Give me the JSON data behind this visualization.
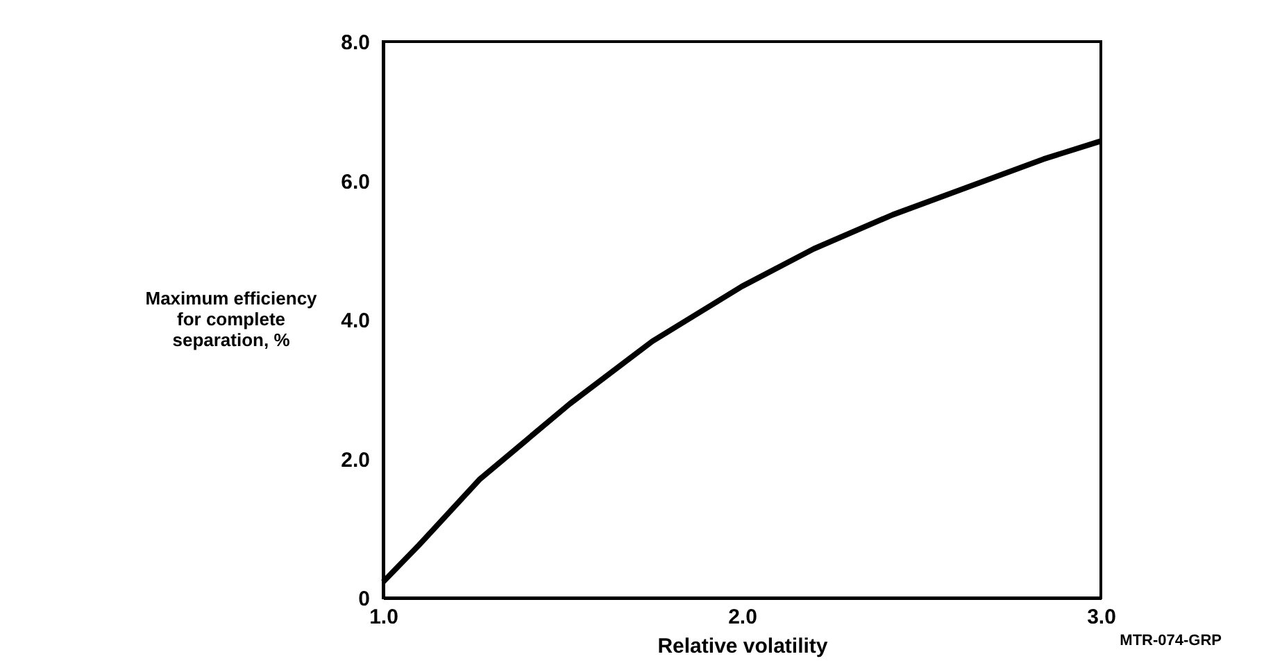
{
  "chart_data": {
    "type": "line",
    "xlabel": "Relative volatility",
    "ylabel": "Maximum efficiency\nfor complete\nseparation, %",
    "x": [
      1.0,
      1.1,
      1.27,
      1.52,
      1.75,
      2.0,
      2.2,
      2.42,
      2.62,
      2.84,
      3.0
    ],
    "series": [
      {
        "color": "#000000",
        "values": [
          0.23,
          0.76,
          1.71,
          2.79,
          3.69,
          4.48,
          5.02,
          5.51,
          5.89,
          6.31,
          6.57
        ]
      }
    ],
    "xlim": [
      1.0,
      3.0
    ],
    "xticks": [
      {
        "value": 1.0,
        "label": "1.0"
      },
      {
        "value": 2.0,
        "label": "2.0"
      },
      {
        "value": 3.0,
        "label": "3.0"
      }
    ],
    "ylim": [
      0,
      8.0
    ],
    "yticks": [
      0,
      {
        "value": 2.0,
        "label": "2.0"
      },
      {
        "value": 4.0,
        "label": "4.0"
      },
      {
        "value": 6.0,
        "label": "6.0"
      },
      {
        "value": 8.0,
        "label": "8.0"
      }
    ],
    "grid": false,
    "marker": "none",
    "line_style": "solid",
    "annotations": [
      "MTR-074-GRP"
    ]
  }
}
